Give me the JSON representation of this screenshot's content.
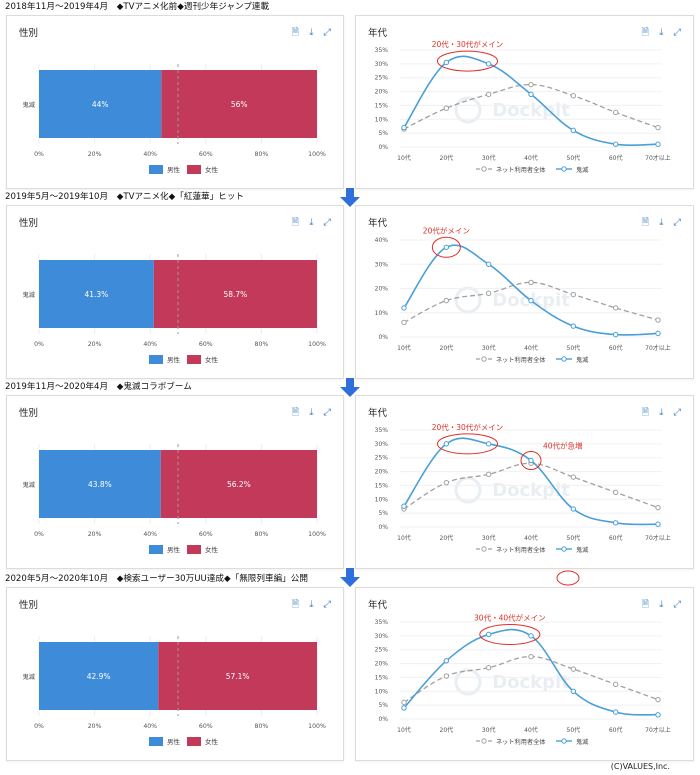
{
  "colors": {
    "male": "#3d8bd9",
    "female": "#c2395a",
    "line_main": "#4a9fd8",
    "line_all": "#a0a0a0",
    "annotation": "#e0302a",
    "accent": "#2f6fdb"
  },
  "legend_labels": {
    "gender_male": "男性",
    "gender_female": "女性",
    "age_all": "ネット利用者全体",
    "age_main": "鬼滅"
  },
  "icon_names": [
    "file-icon",
    "download-icon",
    "expand-icon"
  ],
  "watermark": "Dockpit",
  "copyright": "(C)VALUES,Inc.",
  "periods": [
    {
      "title": "2018年11月～2019年4月　◆TVアニメ化前◆週刊少年ジャンプ連載",
      "gender_title": "性別",
      "age_title": "年代",
      "annotations": [
        {
          "text": "20代・30代がメイン",
          "anchor": [
            1.5,
            0.31
          ]
        }
      ]
    },
    {
      "title": "2019年5月～2019年10月　◆TVアニメ化◆「紅蓮華」ヒット",
      "gender_title": "性別",
      "age_title": "年代",
      "annotations": [
        {
          "text": "20代がメイン",
          "anchor": [
            1.0,
            0.37
          ]
        }
      ]
    },
    {
      "title": "2019年11月～2020年4月　◆鬼滅コラボブーム",
      "gender_title": "性別",
      "age_title": "年代",
      "annotations": [
        {
          "text": "20代・30代がメイン",
          "anchor": [
            1.5,
            0.3
          ]
        },
        {
          "text": "40代が急増",
          "anchor": [
            3.0,
            0.24
          ]
        }
      ]
    },
    {
      "title": "2020年5月～2020年10月　◆検索ユーザー30万UU達成◆「無限列車編」公開",
      "gender_title": "性別",
      "age_title": "年代",
      "annotations": [
        {
          "text": "30代・40代がメイン",
          "anchor": [
            2.5,
            0.305
          ]
        }
      ]
    }
  ],
  "chart_data": [
    {
      "type": "bar",
      "orientation": "horizontal",
      "stacked": true,
      "title": "性別",
      "categories": [
        "鬼滅"
      ],
      "series": [
        {
          "name": "男性",
          "values": [
            44
          ]
        },
        {
          "name": "女性",
          "values": [
            56
          ]
        }
      ],
      "data_labels": [
        "44%",
        "56%"
      ],
      "xlim": [
        0,
        100
      ],
      "x_ticks": [
        "0%",
        "20%",
        "40%",
        "60%",
        "80%",
        "100%"
      ],
      "reference_line": 50
    },
    {
      "type": "line",
      "title": "年代",
      "categories": [
        "10代",
        "20代",
        "30代",
        "40代",
        "50代",
        "60代",
        "70才以上"
      ],
      "series": [
        {
          "name": "ネット利用者全体",
          "values": [
            0.065,
            0.14,
            0.19,
            0.225,
            0.185,
            0.125,
            0.07
          ]
        },
        {
          "name": "鬼滅",
          "values": [
            0.07,
            0.305,
            0.3,
            0.19,
            0.06,
            0.01,
            0.01
          ]
        }
      ],
      "ylim": [
        0,
        0.35
      ],
      "y_ticks": [
        "0%",
        "5%",
        "10%",
        "15%",
        "20%",
        "25%",
        "30%",
        "35%"
      ]
    },
    {
      "type": "bar",
      "orientation": "horizontal",
      "stacked": true,
      "title": "性別",
      "categories": [
        "鬼滅"
      ],
      "series": [
        {
          "name": "男性",
          "values": [
            41.3
          ]
        },
        {
          "name": "女性",
          "values": [
            58.7
          ]
        }
      ],
      "data_labels": [
        "41.3%",
        "58.7%"
      ],
      "xlim": [
        0,
        100
      ],
      "x_ticks": [
        "0%",
        "20%",
        "40%",
        "60%",
        "80%",
        "100%"
      ],
      "reference_line": 50
    },
    {
      "type": "line",
      "title": "年代",
      "categories": [
        "10代",
        "20代",
        "30代",
        "40代",
        "50代",
        "60代",
        "70才以上"
      ],
      "series": [
        {
          "name": "ネット利用者全体",
          "values": [
            0.06,
            0.15,
            0.18,
            0.225,
            0.175,
            0.12,
            0.07
          ]
        },
        {
          "name": "鬼滅",
          "values": [
            0.12,
            0.37,
            0.3,
            0.15,
            0.045,
            0.01,
            0.015
          ]
        }
      ],
      "ylim": [
        0,
        0.4
      ],
      "y_ticks": [
        "0%",
        "10%",
        "20%",
        "30%",
        "40%"
      ]
    },
    {
      "type": "bar",
      "orientation": "horizontal",
      "stacked": true,
      "title": "性別",
      "categories": [
        "鬼滅"
      ],
      "series": [
        {
          "name": "男性",
          "values": [
            43.8
          ]
        },
        {
          "name": "女性",
          "values": [
            56.2
          ]
        }
      ],
      "data_labels": [
        "43.8%",
        "56.2%"
      ],
      "xlim": [
        0,
        100
      ],
      "x_ticks": [
        "0%",
        "20%",
        "40%",
        "60%",
        "80%",
        "100%"
      ],
      "reference_line": 50
    },
    {
      "type": "line",
      "title": "年代",
      "categories": [
        "10代",
        "20代",
        "30代",
        "40代",
        "50代",
        "60代",
        "70才以上"
      ],
      "series": [
        {
          "name": "ネット利用者全体",
          "values": [
            0.065,
            0.16,
            0.19,
            0.23,
            0.18,
            0.125,
            0.07
          ]
        },
        {
          "name": "鬼滅",
          "values": [
            0.075,
            0.3,
            0.3,
            0.24,
            0.065,
            0.015,
            0.01
          ]
        }
      ],
      "ylim": [
        0,
        0.35
      ],
      "y_ticks": [
        "0%",
        "5%",
        "10%",
        "15%",
        "20%",
        "25%",
        "30%",
        "35%"
      ]
    },
    {
      "type": "bar",
      "orientation": "horizontal",
      "stacked": true,
      "title": "性別",
      "categories": [
        "鬼滅"
      ],
      "series": [
        {
          "name": "男性",
          "values": [
            42.9
          ]
        },
        {
          "name": "女性",
          "values": [
            57.1
          ]
        }
      ],
      "data_labels": [
        "42.9%",
        "57.1%"
      ],
      "xlim": [
        0,
        100
      ],
      "x_ticks": [
        "0%",
        "20%",
        "40%",
        "60%",
        "80%",
        "100%"
      ],
      "reference_line": 50
    },
    {
      "type": "line",
      "title": "年代",
      "categories": [
        "10代",
        "20代",
        "30代",
        "40代",
        "50代",
        "60代",
        "70才以上"
      ],
      "series": [
        {
          "name": "ネット利用者全体",
          "values": [
            0.06,
            0.155,
            0.185,
            0.225,
            0.18,
            0.125,
            0.07
          ]
        },
        {
          "name": "鬼滅",
          "values": [
            0.04,
            0.21,
            0.305,
            0.3,
            0.1,
            0.025,
            0.015
          ]
        }
      ],
      "ylim": [
        0,
        0.35
      ],
      "y_ticks": [
        "0%",
        "5%",
        "10%",
        "15%",
        "20%",
        "25%",
        "30%",
        "35%"
      ]
    }
  ]
}
